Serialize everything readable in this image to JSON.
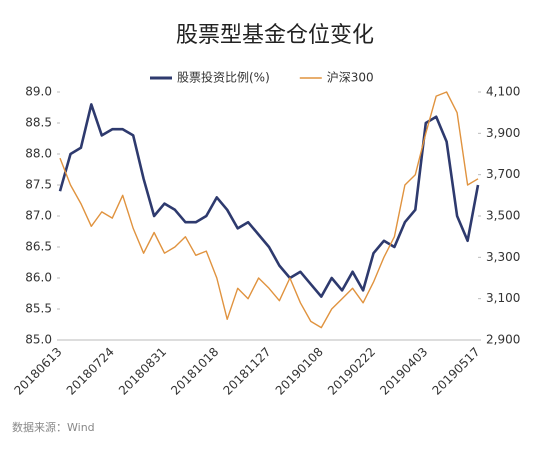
{
  "chart_data": {
    "type": "line",
    "title": "股票型基金仓位变化",
    "source": "数据来源：Wind",
    "categories": [
      "20180613",
      null,
      null,
      null,
      null,
      "20180724",
      null,
      null,
      null,
      null,
      "20180831",
      null,
      null,
      null,
      null,
      "20181018",
      null,
      null,
      null,
      null,
      "20181127",
      null,
      null,
      null,
      null,
      "20190108",
      null,
      null,
      null,
      null,
      "20190222",
      null,
      null,
      null,
      null,
      "20190403",
      null,
      null,
      null,
      null,
      "20190517"
    ],
    "series": [
      {
        "name": "股票投资比例(%)",
        "color": "#2e3a6e",
        "axis": "y",
        "values": [
          87.4,
          88.0,
          88.1,
          88.8,
          88.3,
          88.4,
          88.4,
          88.3,
          87.6,
          87.0,
          87.2,
          87.1,
          86.9,
          86.9,
          87.0,
          87.3,
          87.1,
          86.8,
          86.9,
          86.7,
          86.5,
          86.2,
          86.0,
          86.1,
          85.9,
          85.7,
          86.0,
          85.8,
          86.1,
          85.8,
          86.4,
          86.6,
          86.5,
          86.9,
          87.1,
          88.5,
          88.6,
          88.2,
          87.0,
          86.6,
          87.5
        ]
      },
      {
        "name": "沪深300",
        "color": "#e0933f",
        "axis": "y2",
        "values": [
          3780,
          3650,
          3560,
          3450,
          3520,
          3490,
          3600,
          3440,
          3320,
          3420,
          3320,
          3350,
          3400,
          3310,
          3330,
          3200,
          3000,
          3150,
          3100,
          3200,
          3150,
          3090,
          3200,
          3080,
          2990,
          2960,
          3050,
          3100,
          3150,
          3080,
          3180,
          3300,
          3400,
          3650,
          3700,
          3900,
          4080,
          4100,
          4000,
          3650,
          3680
        ]
      }
    ],
    "ylim": [
      85.0,
      89.0
    ],
    "yticks": [
      {
        "value": 85,
        "label": "85.0"
      },
      {
        "value": 85.5,
        "label": "85.5"
      },
      {
        "value": 86,
        "label": "86.0"
      },
      {
        "value": 86.5,
        "label": "86.5"
      },
      {
        "value": 87,
        "label": "87.0"
      },
      {
        "value": 87.5,
        "label": "87.5"
      },
      {
        "value": 88,
        "label": "88.0"
      },
      {
        "value": 88.5,
        "label": "88.5"
      },
      {
        "value": 89,
        "label": "89.0"
      }
    ],
    "y2lim": [
      2900,
      4100
    ],
    "y2ticks": [
      {
        "value": 2900,
        "label": "2,900"
      },
      {
        "value": 3100,
        "label": "3,100"
      },
      {
        "value": 3300,
        "label": "3,300"
      },
      {
        "value": 3500,
        "label": "3,500"
      },
      {
        "value": 3700,
        "label": "3,700"
      },
      {
        "value": 3900,
        "label": "3,900"
      },
      {
        "value": 4100,
        "label": "4,100"
      }
    ],
    "legend": "top"
  }
}
